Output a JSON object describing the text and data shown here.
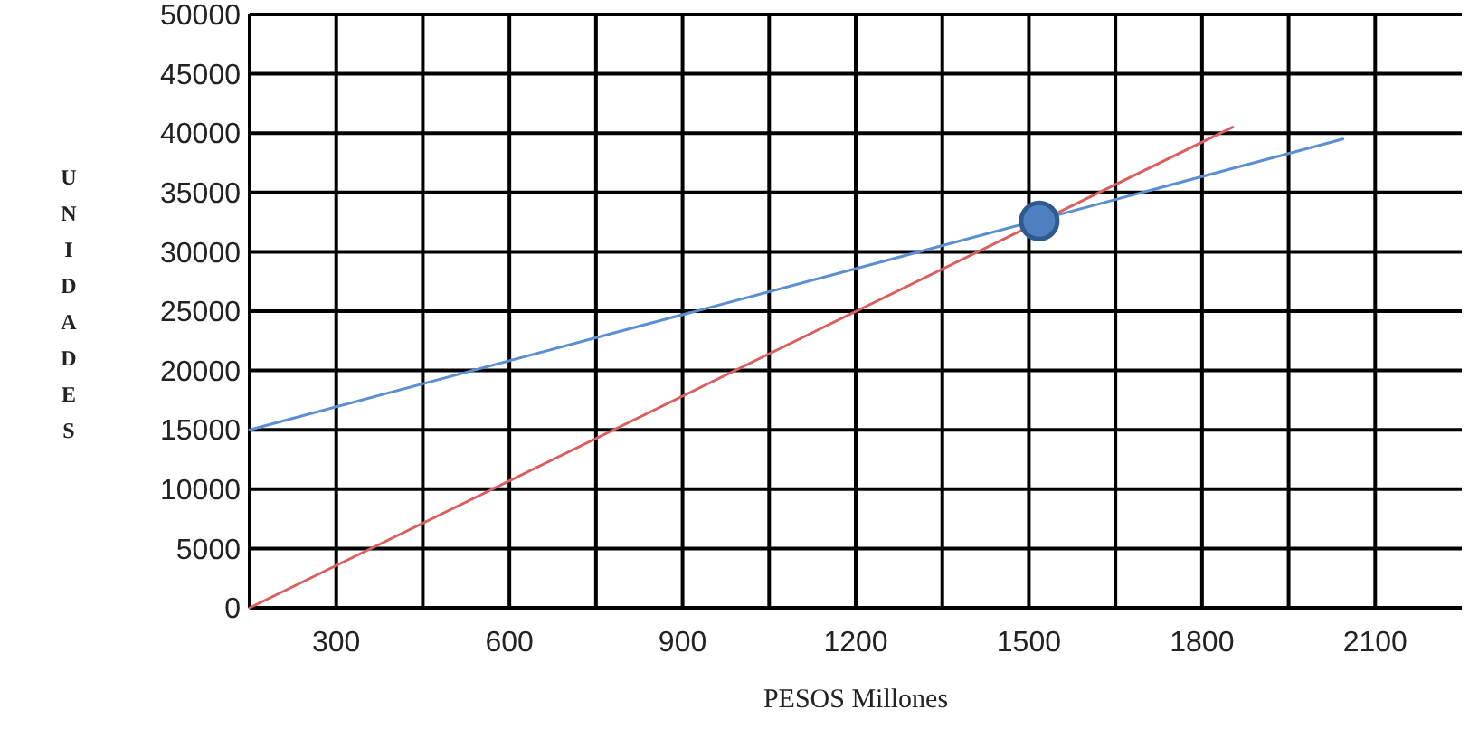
{
  "chart_data": {
    "type": "line",
    "xlabel": "PESOS Millones",
    "ylabel": "UNIDADES",
    "xlim": [
      150,
      2250
    ],
    "ylim": [
      0,
      50000
    ],
    "xticks": [
      300,
      {
        "value": 450,
        "label": null
      },
      600,
      {
        "value": 750,
        "label": null
      },
      900,
      {
        "value": 1050,
        "label": null
      },
      1200,
      {
        "value": 1350,
        "label": null
      },
      1500,
      {
        "value": 1650,
        "label": null
      },
      1800,
      {
        "value": 1950,
        "label": null
      },
      2100
    ],
    "yticks": [
      0,
      5000,
      10000,
      15000,
      20000,
      25000,
      30000,
      35000,
      40000,
      45000,
      50000
    ],
    "grid": true,
    "series": [
      {
        "color": "#5b8fd0",
        "x": [
          150,
          2044
        ],
        "values": [
          15000,
          39500
        ]
      },
      {
        "color": "#d9605f",
        "x": [
          150,
          1853
        ],
        "values": [
          0,
          40500
        ]
      },
      {
        "type": "scatter",
        "color": "#4f7fbf",
        "x": [
          1518
        ],
        "values": [
          32600
        ]
      }
    ]
  }
}
